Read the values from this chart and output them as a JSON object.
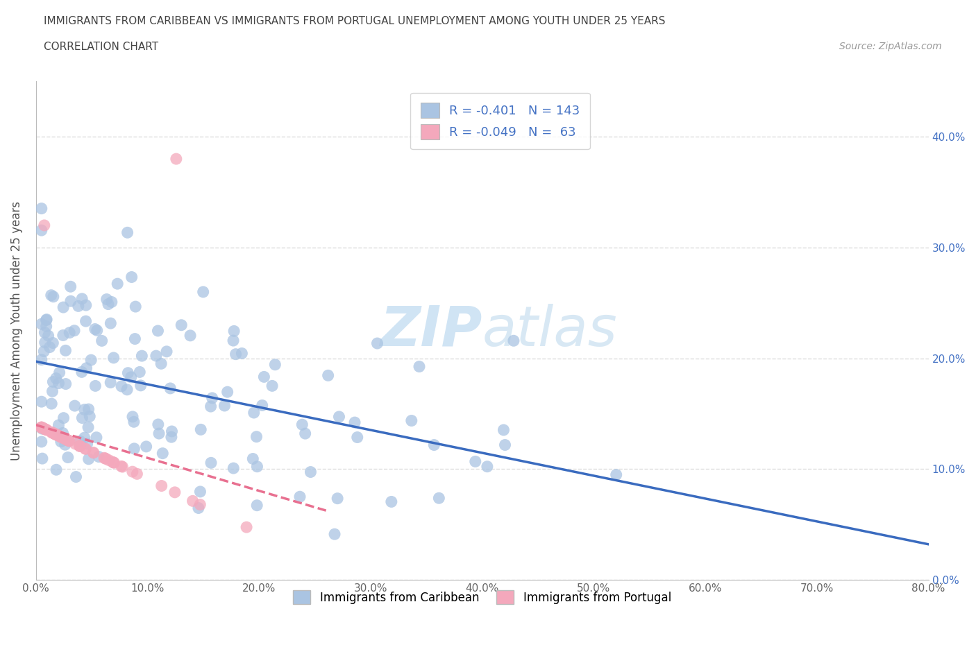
{
  "title_line1": "IMMIGRANTS FROM CARIBBEAN VS IMMIGRANTS FROM PORTUGAL UNEMPLOYMENT AMONG YOUTH UNDER 25 YEARS",
  "title_line2": "CORRELATION CHART",
  "source_text": "Source: ZipAtlas.com",
  "ylabel": "Unemployment Among Youth under 25 years",
  "xlim": [
    0,
    0.8
  ],
  "ylim": [
    0,
    0.45
  ],
  "xticks": [
    0.0,
    0.1,
    0.2,
    0.3,
    0.4,
    0.5,
    0.6,
    0.7,
    0.8
  ],
  "yticks": [
    0.0,
    0.1,
    0.2,
    0.3,
    0.4
  ],
  "caribbean_R": -0.401,
  "caribbean_N": 143,
  "portugal_R": -0.049,
  "portugal_N": 63,
  "caribbean_color": "#aac4e2",
  "portugal_color": "#f4a8bc",
  "caribbean_line_color": "#3a6bbf",
  "portugal_line_color": "#e87090",
  "watermark_color": "#d0e4f4",
  "background_color": "#ffffff",
  "grid_color": "#dddddd",
  "title_color": "#444444",
  "right_axis_color": "#4472c4",
  "source_color": "#999999"
}
